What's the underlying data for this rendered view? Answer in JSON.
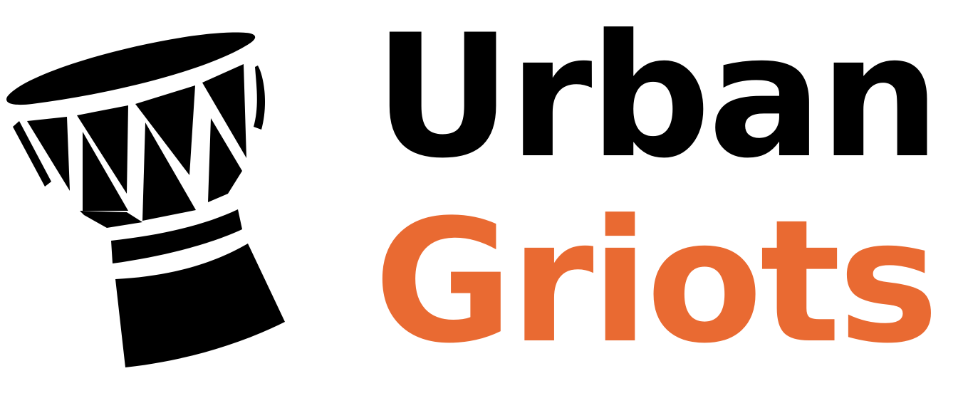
{
  "brand": {
    "logo_icon": "djembe-drum-icon",
    "name_line1": "Urban",
    "name_line2": "Griots"
  },
  "colors": {
    "ink": "#000000",
    "accent": "#e96a32",
    "background": "#ffffff"
  }
}
